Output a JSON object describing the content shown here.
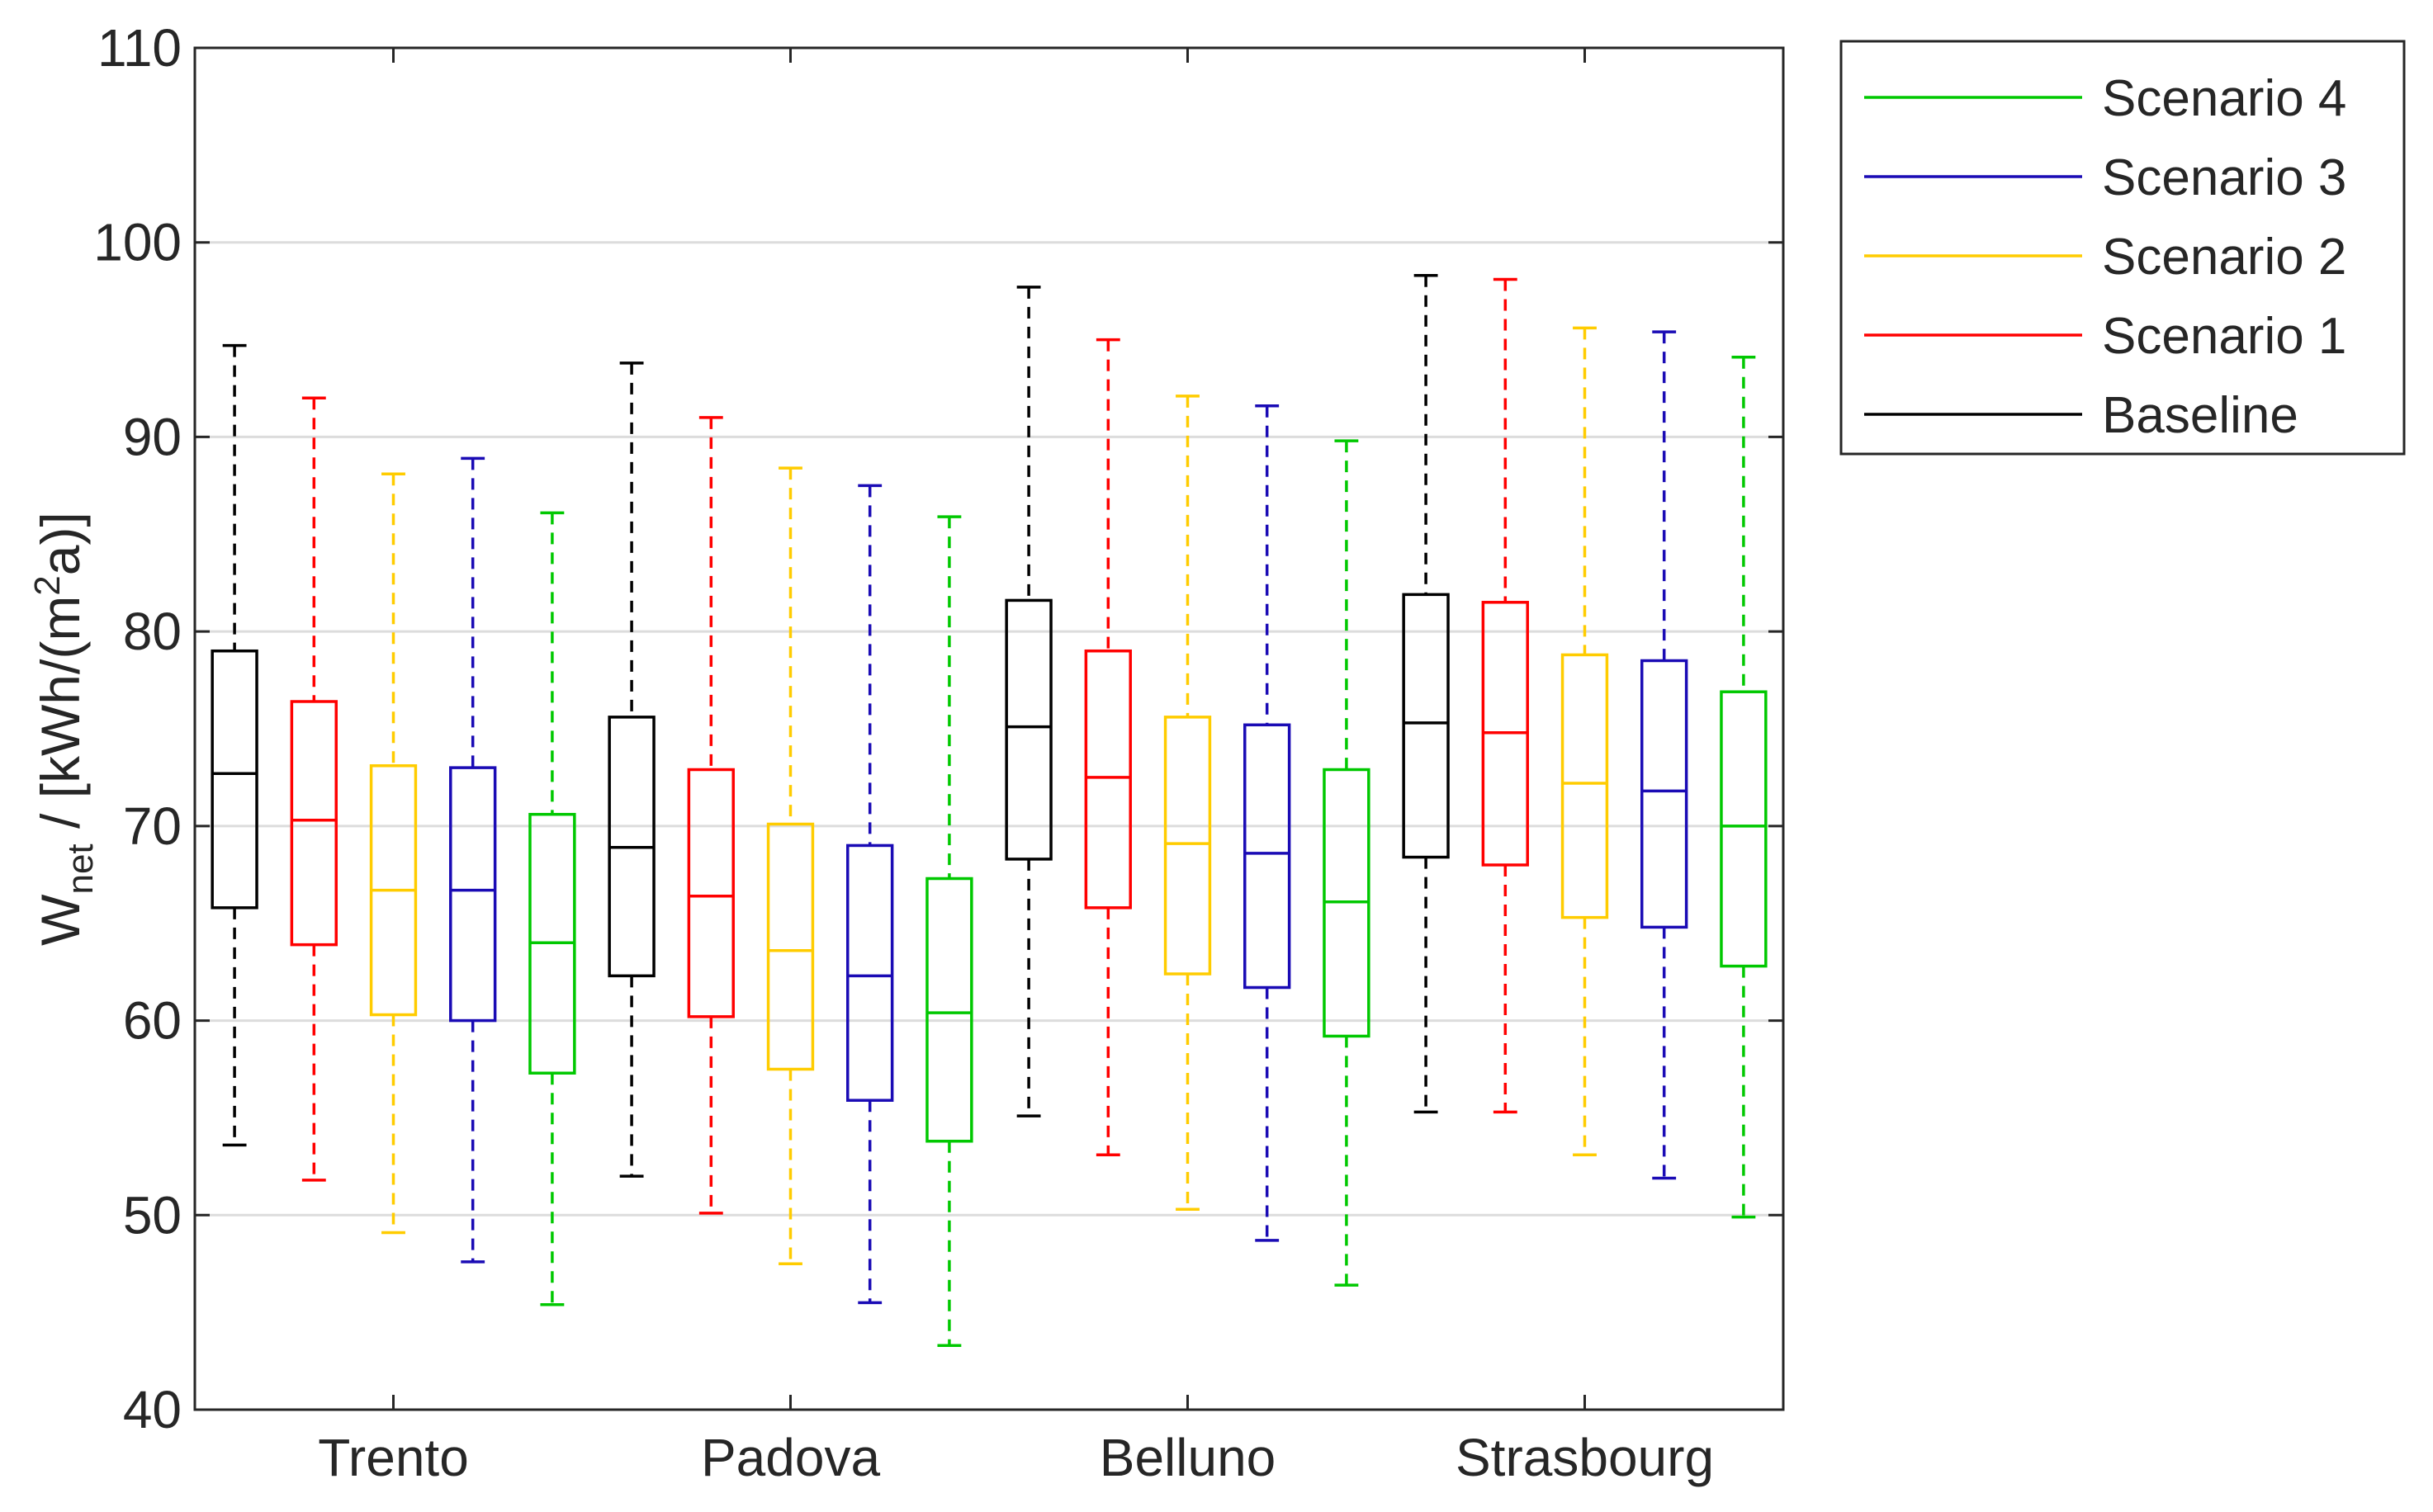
{
  "chart_data": {
    "type": "boxplot",
    "title": "",
    "xlabel": "",
    "ylabel": {
      "main": "W",
      "sub": "net",
      "rest_prefix": " / [kWh/(m",
      "sup": "2",
      "rest_suffix": "a)]"
    },
    "ylim": [
      40,
      110
    ],
    "yticks": [
      40,
      50,
      60,
      70,
      80,
      90,
      100,
      110
    ],
    "grid": "horizontal",
    "categories": [
      "Trento",
      "Padova",
      "Belluno",
      "Strasbourg"
    ],
    "legend_position": "outside-top-right",
    "legend": [
      {
        "name": "Scenario 4",
        "color": "#00c800"
      },
      {
        "name": "Scenario 3",
        "color": "#1a0bb5"
      },
      {
        "name": "Scenario 2",
        "color": "#ffcc00"
      },
      {
        "name": "Scenario 1",
        "color": "#ff0000"
      },
      {
        "name": "Baseline",
        "color": "#000000"
      }
    ],
    "series": [
      {
        "name": "Baseline",
        "color": "#000000",
        "boxes": [
          {
            "category": "Trento",
            "min": 53.6,
            "q1": 65.8,
            "median": 72.7,
            "q3": 79.0,
            "max": 94.7
          },
          {
            "category": "Padova",
            "min": 52.0,
            "q1": 62.3,
            "median": 68.9,
            "q3": 75.6,
            "max": 93.8
          },
          {
            "category": "Belluno",
            "min": 55.1,
            "q1": 68.3,
            "median": 75.1,
            "q3": 81.6,
            "max": 97.7
          },
          {
            "category": "Strasbourg",
            "min": 55.3,
            "q1": 68.4,
            "median": 75.3,
            "q3": 81.9,
            "max": 98.3
          }
        ]
      },
      {
        "name": "Scenario 1",
        "color": "#ff0000",
        "boxes": [
          {
            "category": "Trento",
            "min": 51.8,
            "q1": 63.9,
            "median": 70.3,
            "q3": 76.4,
            "max": 92.0
          },
          {
            "category": "Padova",
            "min": 50.1,
            "q1": 60.2,
            "median": 66.4,
            "q3": 72.9,
            "max": 91.0
          },
          {
            "category": "Belluno",
            "min": 53.1,
            "q1": 65.8,
            "median": 72.5,
            "q3": 79.0,
            "max": 95.0
          },
          {
            "category": "Strasbourg",
            "min": 55.3,
            "q1": 68.0,
            "median": 74.8,
            "q3": 81.5,
            "max": 98.1
          }
        ]
      },
      {
        "name": "Scenario 2",
        "color": "#ffcc00",
        "boxes": [
          {
            "category": "Trento",
            "min": 49.1,
            "q1": 60.3,
            "median": 66.7,
            "q3": 73.1,
            "max": 88.1
          },
          {
            "category": "Padova",
            "min": 47.5,
            "q1": 57.5,
            "median": 63.6,
            "q3": 70.1,
            "max": 88.4
          },
          {
            "category": "Belluno",
            "min": 50.3,
            "q1": 62.4,
            "median": 69.1,
            "q3": 75.6,
            "max": 92.1
          },
          {
            "category": "Strasbourg",
            "min": 53.1,
            "q1": 65.3,
            "median": 72.2,
            "q3": 78.8,
            "max": 95.6
          }
        ]
      },
      {
        "name": "Scenario 3",
        "color": "#1a0bb5",
        "boxes": [
          {
            "category": "Trento",
            "min": 47.6,
            "q1": 60.0,
            "median": 66.7,
            "q3": 73.0,
            "max": 88.9
          },
          {
            "category": "Padova",
            "min": 45.5,
            "q1": 55.9,
            "median": 62.3,
            "q3": 69.0,
            "max": 87.5
          },
          {
            "category": "Belluno",
            "min": 48.7,
            "q1": 61.7,
            "median": 68.6,
            "q3": 75.2,
            "max": 91.6
          },
          {
            "category": "Strasbourg",
            "min": 51.9,
            "q1": 64.8,
            "median": 71.8,
            "q3": 78.5,
            "max": 95.4
          }
        ]
      },
      {
        "name": "Scenario 4",
        "color": "#00c800",
        "boxes": [
          {
            "category": "Trento",
            "min": 45.4,
            "q1": 57.3,
            "median": 64.0,
            "q3": 70.6,
            "max": 86.1
          },
          {
            "category": "Padova",
            "min": 43.3,
            "q1": 53.8,
            "median": 60.4,
            "q3": 67.3,
            "max": 85.9
          },
          {
            "category": "Belluno",
            "min": 46.4,
            "q1": 59.2,
            "median": 66.1,
            "q3": 72.9,
            "max": 89.8
          },
          {
            "category": "Strasbourg",
            "min": 49.9,
            "q1": 62.8,
            "median": 70.0,
            "q3": 76.9,
            "max": 94.1
          }
        ]
      }
    ]
  }
}
